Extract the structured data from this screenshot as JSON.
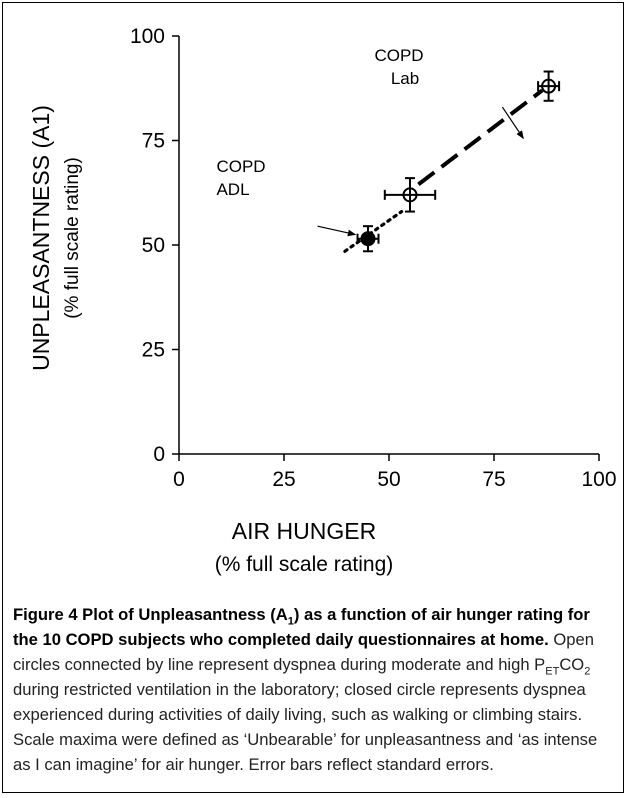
{
  "chart_data": {
    "type": "scatter",
    "xlabel": "AIR HUNGER",
    "xlabel_sub": "(% full scale rating)",
    "ylabel": "UNPLEASANTNESS (A1)",
    "ylabel_sub": "(% full scale rating)",
    "xlim": [
      0,
      100
    ],
    "ylim": [
      0,
      100
    ],
    "xticks": [
      0,
      25,
      50,
      75,
      100
    ],
    "yticks": [
      0,
      25,
      50,
      75,
      100
    ],
    "grid": false,
    "series": [
      {
        "marker": "open-circle",
        "points": [
          {
            "x": 55,
            "y": 62,
            "xerr": 6,
            "yerr": 4
          },
          {
            "x": 88,
            "y": 88,
            "xerr": 2.5,
            "yerr": 3.5
          }
        ]
      },
      {
        "marker": "closed-circle",
        "points": [
          {
            "x": 45,
            "y": 51.5,
            "xerr": 2.5,
            "yerr": 3
          }
        ]
      }
    ],
    "dotted_line": [
      [
        39.5,
        48.5
      ],
      [
        53,
        58
      ]
    ],
    "dashed_line": [
      [
        57,
        64.5
      ],
      [
        86.5,
        87
      ]
    ],
    "annotations": [
      {
        "lines": [
          "COPD",
          "Lab"
        ],
        "arrow_from": [
          77,
          83
        ],
        "arrow_to": [
          82,
          75.5
        ]
      },
      {
        "lines": [
          "COPD",
          "ADL"
        ],
        "arrow_from": [
          33,
          54.5
        ],
        "arrow_to": [
          42,
          52.5
        ]
      }
    ]
  },
  "caption": {
    "bold_1": "Figure 4 Plot of Unpleasantness (A",
    "bold_sub": "1",
    "bold_2": ") as a function of air hunger rating for the 10 COPD subjects who completed daily questionnaires at home.",
    "text_1": " Open circles connected by line represent dyspnea during moderate and high P",
    "sub_et": "ET",
    "text_co": "CO",
    "sub_2": "2",
    "text_2": " during restricted ventilation in the laboratory; closed circle represents dyspnea experienced during activities of daily living, such as walking or climbing stairs. Scale maxima were defined as ‘Unbearable’ for unpleasantness and ‘as intense as I can imagine’ for air hunger. Error bars reflect standard errors."
  }
}
